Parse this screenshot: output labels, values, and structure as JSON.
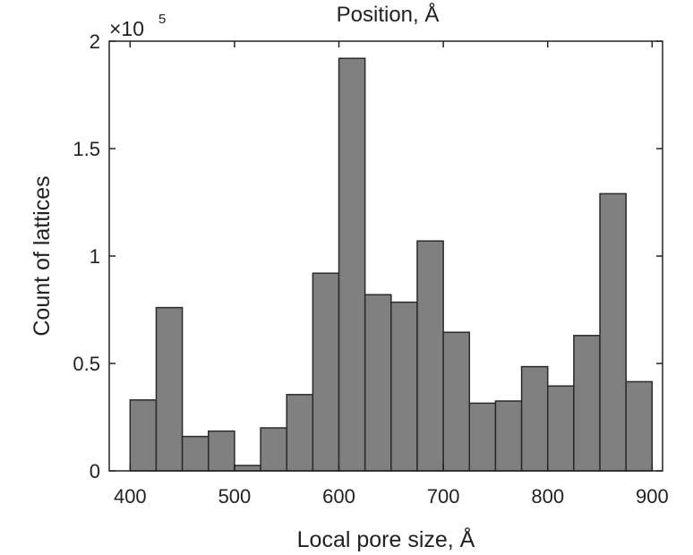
{
  "chart_data": {
    "type": "bar",
    "title": "Position, Å",
    "xlabel": "Local pore size, Å",
    "ylabel": "Count of lattices",
    "y_multiplier": {
      "base": "×10",
      "exponent": "5"
    },
    "xlim": [
      380,
      910
    ],
    "ylim": [
      0,
      200000
    ],
    "x_ticks": [
      400,
      500,
      600,
      700,
      800,
      900
    ],
    "y_ticks": [
      0,
      50000,
      100000,
      150000,
      200000
    ],
    "x_tick_labels": [
      "400",
      "500",
      "600",
      "700",
      "800",
      "900"
    ],
    "y_tick_labels": [
      "0",
      "0.5",
      "1",
      "1.5",
      "2"
    ],
    "grid": false,
    "bar_color": "#808080",
    "edge_color": "#2a2a2a",
    "bin_edges": [
      400,
      425,
      450,
      475,
      500,
      525,
      550,
      575,
      600,
      625,
      650,
      675,
      700,
      725,
      750,
      775,
      800,
      825,
      850,
      875,
      900
    ],
    "values": [
      33000,
      76000,
      16000,
      18500,
      2500,
      20000,
      35500,
      92000,
      192000,
      82000,
      78500,
      107000,
      64500,
      31500,
      32500,
      48500,
      39500,
      63000,
      129000,
      41500
    ]
  }
}
